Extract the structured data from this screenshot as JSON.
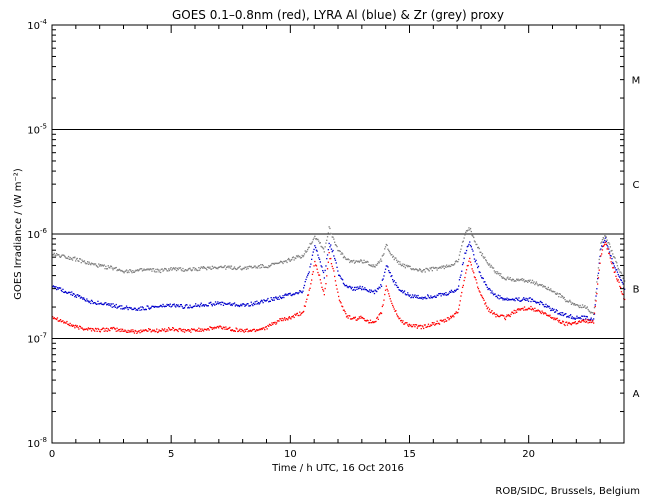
{
  "chart_data": {
    "type": "scatter",
    "title": "GOES 0.1–0.8nm (red), LYRA Al (blue) & Zr (grey) proxy",
    "xlabel": "Time / h UTC, 16 Oct 2016",
    "ylabel": "GOES Irradiance / (W m⁻²)",
    "xlim": [
      0,
      24
    ],
    "ylim": [
      1e-08,
      0.0001
    ],
    "yscale": "log",
    "x_ticks": [
      0,
      5,
      10,
      15,
      20
    ],
    "x_tick_labels": [
      "0",
      "5",
      "10",
      "15",
      "20"
    ],
    "y_ticks": [
      1e-08,
      1e-07,
      1e-06,
      1e-05,
      0.0001
    ],
    "y_tick_labels": [
      {
        "base": "10",
        "exp": "-8"
      },
      {
        "base": "10",
        "exp": "-7"
      },
      {
        "base": "10",
        "exp": "-6"
      },
      {
        "base": "10",
        "exp": "-5"
      },
      {
        "base": "10",
        "exp": "-4"
      }
    ],
    "flare_class_labels": [
      {
        "label": "A",
        "y": 3e-08
      },
      {
        "label": "B",
        "y": 3e-07
      },
      {
        "label": "C",
        "y": 3e-06
      },
      {
        "label": "M",
        "y": 3e-05
      }
    ],
    "flare_class_lines": [
      1e-07,
      1e-06,
      1e-05
    ],
    "grid": false,
    "series": [
      {
        "color": "#ff0000",
        "x": [
          0.0,
          0.5,
          1.0,
          1.5,
          2.0,
          2.5,
          3.0,
          3.5,
          4.0,
          4.5,
          5.0,
          5.5,
          6.0,
          6.5,
          7.0,
          7.5,
          8.0,
          8.5,
          9.0,
          9.5,
          10.0,
          10.5,
          10.8,
          11.0,
          11.2,
          11.4,
          11.6,
          11.8,
          12.0,
          12.3,
          12.6,
          13.0,
          13.5,
          13.8,
          14.0,
          14.3,
          14.6,
          15.0,
          15.5,
          16.0,
          16.5,
          17.0,
          17.3,
          17.5,
          17.7,
          18.0,
          18.3,
          18.6,
          19.0,
          19.5,
          20.0,
          20.5,
          21.0,
          21.5,
          22.0,
          22.4,
          22.7,
          23.0,
          23.2,
          23.5,
          24.0
        ],
        "values": [
          1.65e-07,
          1.45e-07,
          1.3e-07,
          1.25e-07,
          1.22e-07,
          1.25e-07,
          1.2e-07,
          1.18e-07,
          1.22e-07,
          1.2e-07,
          1.25e-07,
          1.2e-07,
          1.22e-07,
          1.25e-07,
          1.3e-07,
          1.25e-07,
          1.2e-07,
          1.22e-07,
          1.3e-07,
          1.5e-07,
          1.6e-07,
          1.8e-07,
          3e-07,
          5.5e-07,
          4e-07,
          2.6e-07,
          6.5e-07,
          4.5e-07,
          2.5e-07,
          1.7e-07,
          1.55e-07,
          1.6e-07,
          1.4e-07,
          1.8e-07,
          3.2e-07,
          2e-07,
          1.5e-07,
          1.35e-07,
          1.3e-07,
          1.4e-07,
          1.5e-07,
          1.8e-07,
          4e-07,
          6e-07,
          4e-07,
          2.5e-07,
          1.9e-07,
          1.7e-07,
          1.6e-07,
          1.9e-07,
          2e-07,
          1.8e-07,
          1.6e-07,
          1.4e-07,
          1.45e-07,
          1.5e-07,
          1.45e-07,
          6.5e-07,
          8.5e-07,
          5e-07,
          2.4e-07
        ]
      },
      {
        "color": "#0000cc",
        "x": [
          0.0,
          0.5,
          1.0,
          1.5,
          2.0,
          2.5,
          3.0,
          3.5,
          4.0,
          4.5,
          5.0,
          5.5,
          6.0,
          6.5,
          7.0,
          7.5,
          8.0,
          8.5,
          9.0,
          9.5,
          10.0,
          10.5,
          10.8,
          11.0,
          11.2,
          11.4,
          11.6,
          11.8,
          12.0,
          12.3,
          12.6,
          13.0,
          13.5,
          13.8,
          14.0,
          14.3,
          14.6,
          15.0,
          15.5,
          16.0,
          16.5,
          17.0,
          17.3,
          17.5,
          17.7,
          18.0,
          18.3,
          18.6,
          19.0,
          19.5,
          20.0,
          20.5,
          21.0,
          21.5,
          22.0,
          22.4,
          22.7,
          23.0,
          23.2,
          23.5,
          24.0
        ],
        "values": [
          3.2e-07,
          2.9e-07,
          2.6e-07,
          2.3e-07,
          2.2e-07,
          2.1e-07,
          2e-07,
          1.95e-07,
          2e-07,
          2.05e-07,
          2.1e-07,
          2.05e-07,
          2.1e-07,
          2.15e-07,
          2.2e-07,
          2.15e-07,
          2.1e-07,
          2.2e-07,
          2.35e-07,
          2.5e-07,
          2.7e-07,
          2.9e-07,
          4.8e-07,
          7.8e-07,
          5.8e-07,
          4e-07,
          8.3e-07,
          6.5e-07,
          4.2e-07,
          3.2e-07,
          3e-07,
          3.1e-07,
          2.8e-07,
          3.3e-07,
          5.2e-07,
          3.6e-07,
          2.9e-07,
          2.6e-07,
          2.5e-07,
          2.6e-07,
          2.7e-07,
          3e-07,
          6.5e-07,
          8.7e-07,
          6e-07,
          4e-07,
          3e-07,
          2.6e-07,
          2.4e-07,
          2.4e-07,
          2.4e-07,
          2.2e-07,
          1.9e-07,
          1.7e-07,
          1.6e-07,
          1.6e-07,
          1.5e-07,
          7.5e-07,
          9e-07,
          5.5e-07,
          3e-07
        ]
      },
      {
        "color": "#808080",
        "x": [
          0.0,
          0.5,
          1.0,
          1.5,
          2.0,
          2.5,
          3.0,
          3.5,
          4.0,
          4.5,
          5.0,
          5.5,
          6.0,
          6.5,
          7.0,
          7.5,
          8.0,
          8.5,
          9.0,
          9.5,
          10.0,
          10.5,
          10.8,
          11.0,
          11.2,
          11.4,
          11.6,
          11.8,
          12.0,
          12.3,
          12.6,
          13.0,
          13.5,
          13.8,
          14.0,
          14.3,
          14.6,
          15.0,
          15.5,
          16.0,
          16.5,
          17.0,
          17.3,
          17.5,
          17.7,
          18.0,
          18.3,
          18.6,
          19.0,
          19.5,
          20.0,
          20.5,
          21.0,
          21.5,
          22.0,
          22.4,
          22.7,
          23.0,
          23.2,
          23.5,
          24.0
        ],
        "values": [
          6.5e-07,
          6.2e-07,
          5.8e-07,
          5.3e-07,
          5e-07,
          4.8e-07,
          4.5e-07,
          4.5e-07,
          4.6e-07,
          4.5e-07,
          4.7e-07,
          4.6e-07,
          4.7e-07,
          4.8e-07,
          4.9e-07,
          4.8e-07,
          4.8e-07,
          4.9e-07,
          5e-07,
          5.3e-07,
          5.8e-07,
          6.3e-07,
          8e-07,
          9.6e-07,
          8.5e-07,
          7e-07,
          1.15e-06,
          9e-07,
          7e-07,
          5.8e-07,
          5.5e-07,
          5.6e-07,
          5e-07,
          5.8e-07,
          8e-07,
          6e-07,
          5.2e-07,
          4.8e-07,
          4.5e-07,
          4.7e-07,
          4.9e-07,
          5.5e-07,
          1e-06,
          1.15e-06,
          9e-07,
          6.5e-07,
          5.2e-07,
          4.4e-07,
          3.8e-07,
          3.7e-07,
          3.6e-07,
          3.3e-07,
          2.9e-07,
          2.4e-07,
          2.1e-07,
          2e-07,
          1.7e-07,
          8.5e-07,
          9.8e-07,
          6.5e-07,
          3.6e-07
        ]
      }
    ]
  },
  "credit": "ROB/SIDC, Brussels, Belgium"
}
